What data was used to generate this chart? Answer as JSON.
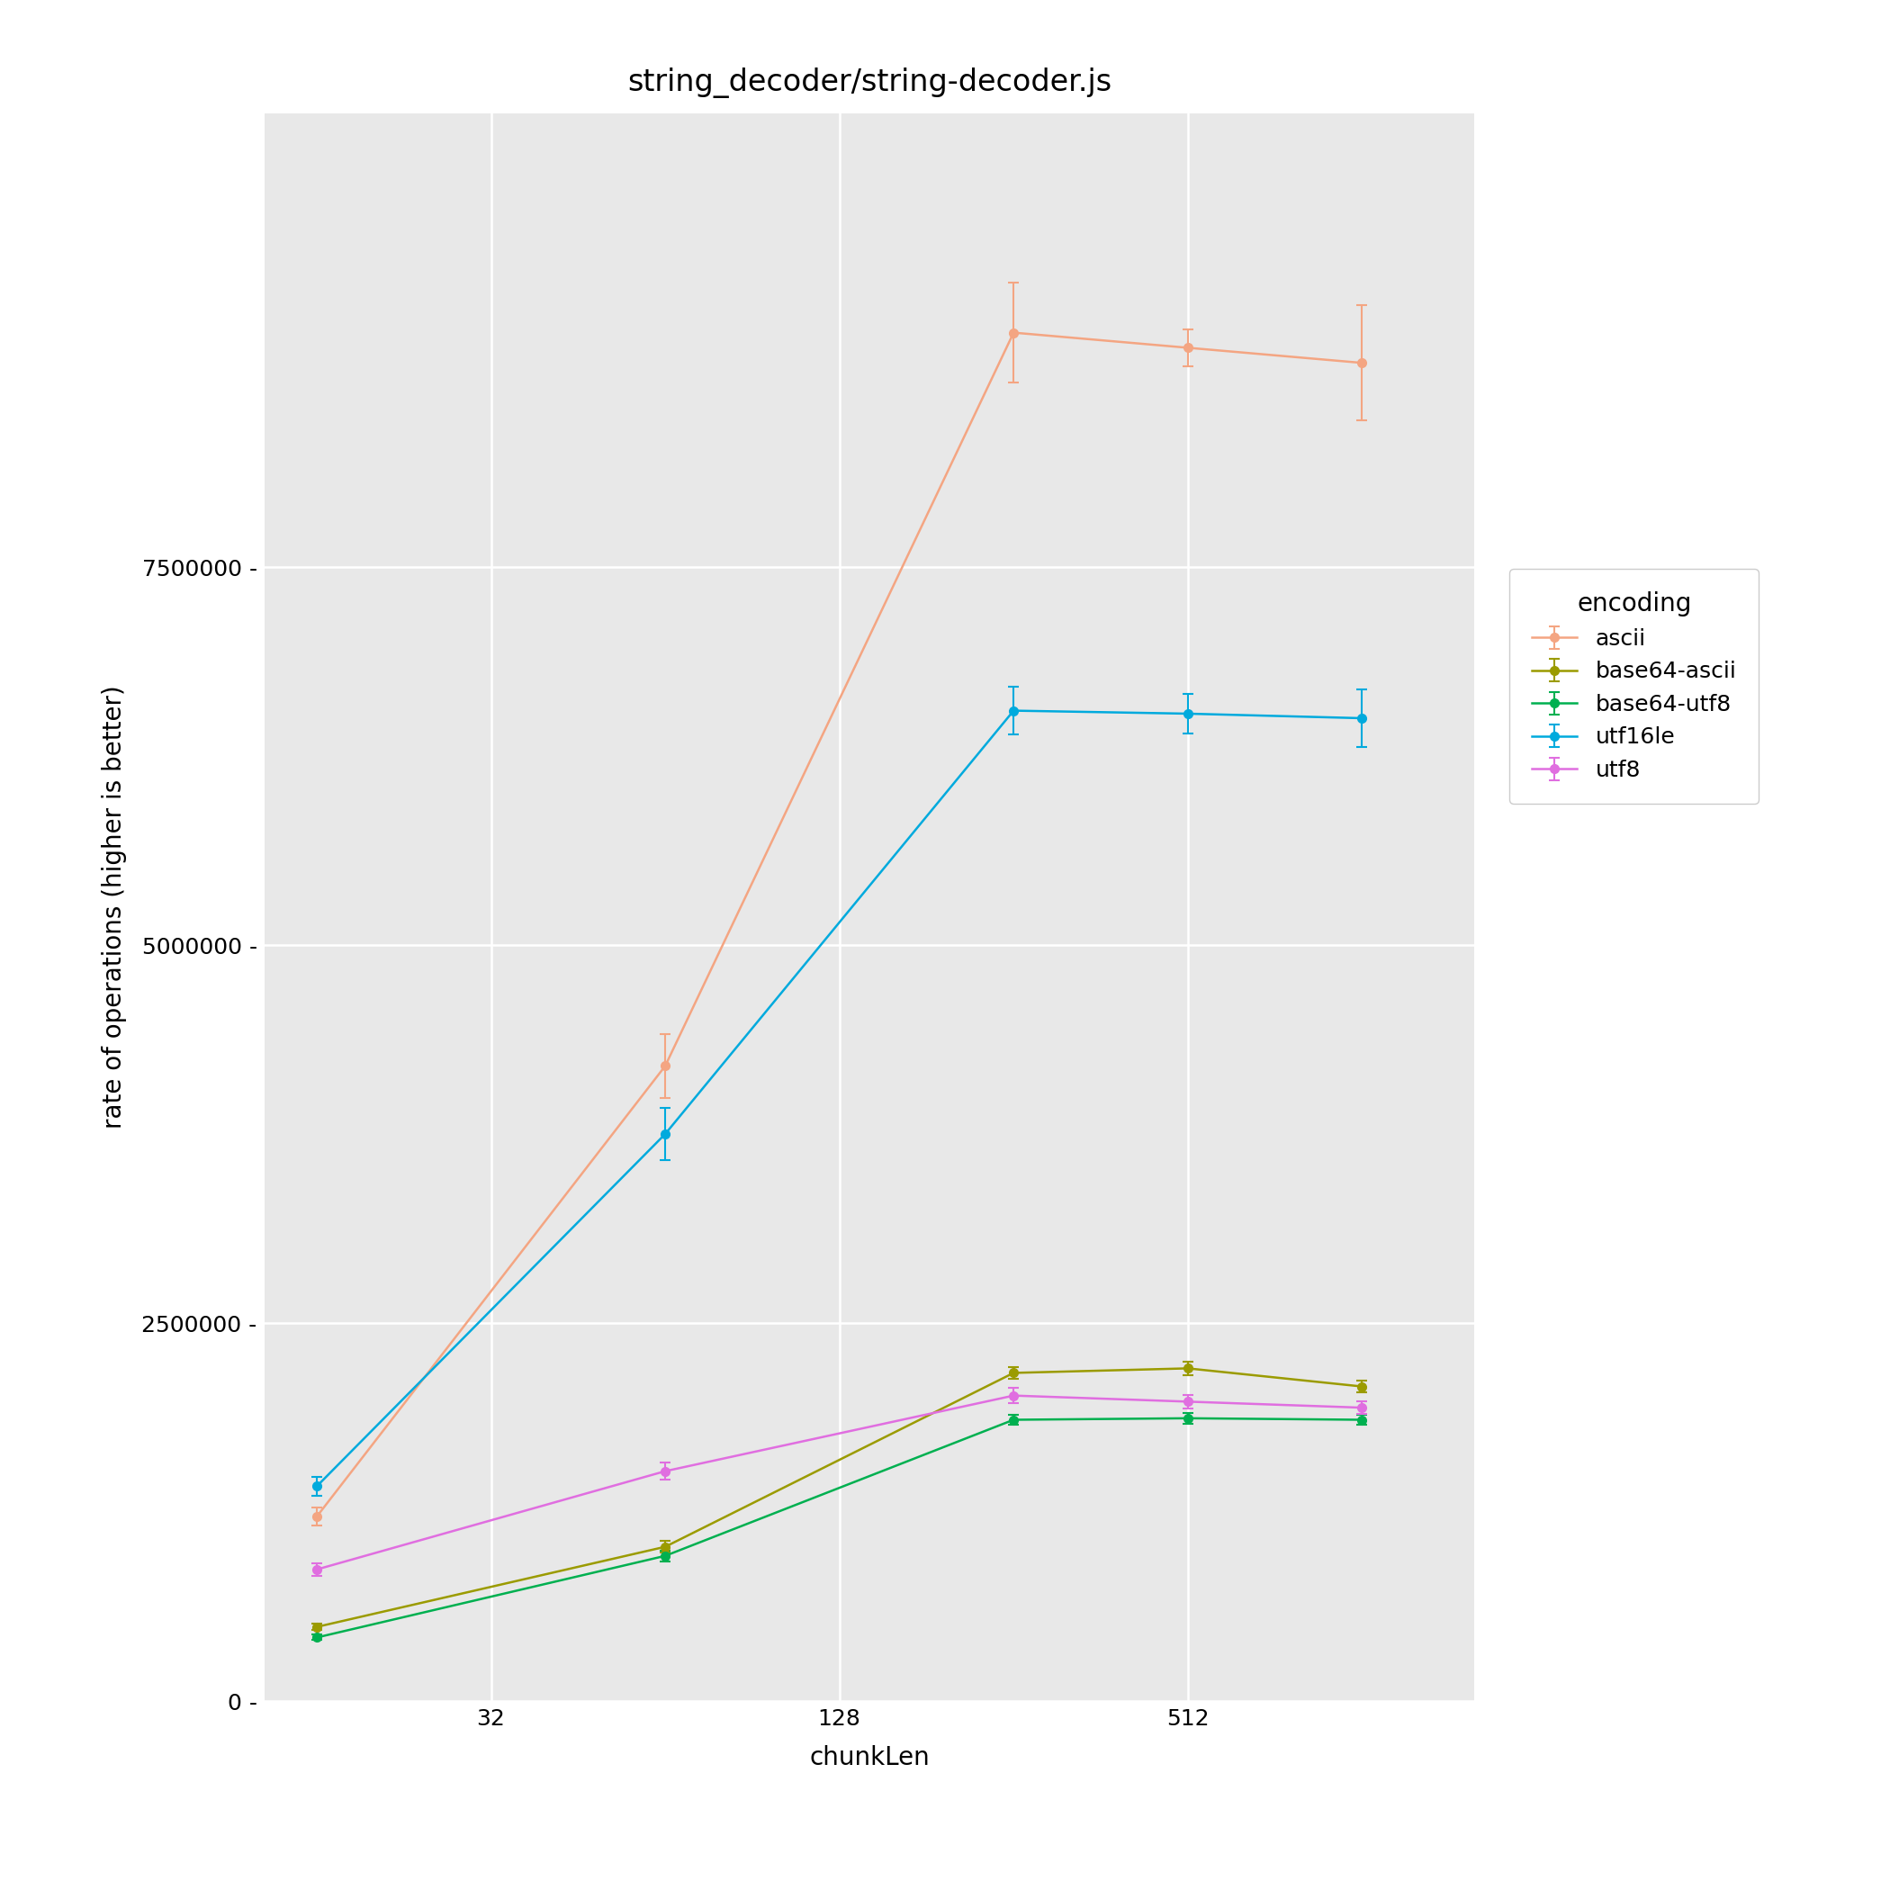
{
  "title": "string_decoder/string-decoder.js",
  "xlabel": "chunkLen",
  "ylabel": "rate of operations (higher is better)",
  "plot_bg": "#E8E8E8",
  "grid_color": "#FFFFFF",
  "x_ticks_show": [
    32,
    128,
    512
  ],
  "x_lim": [
    13,
    1600
  ],
  "series_order": [
    "ascii",
    "base64-ascii",
    "base64-utf8",
    "utf16le",
    "utf8"
  ],
  "series": {
    "ascii": {
      "color": "#F4A582",
      "x": [
        16,
        64,
        256,
        512,
        1024
      ],
      "y": [
        1220000,
        4200000,
        9050000,
        8950000,
        8850000
      ],
      "yerr": [
        60000,
        210000,
        330000,
        120000,
        380000
      ]
    },
    "base64-ascii": {
      "color": "#9B9B00",
      "x": [
        16,
        64,
        256,
        512,
        1024
      ],
      "y": [
        490000,
        1020000,
        2170000,
        2200000,
        2080000
      ],
      "yerr": [
        20000,
        40000,
        40000,
        45000,
        40000
      ]
    },
    "base64-utf8": {
      "color": "#00B050",
      "x": [
        16,
        64,
        256,
        512,
        1024
      ],
      "y": [
        420000,
        960000,
        1860000,
        1870000,
        1860000
      ],
      "yerr": [
        18000,
        35000,
        35000,
        35000,
        35000
      ]
    },
    "utf16le": {
      "color": "#00AADD",
      "x": [
        16,
        64,
        256,
        512,
        1024
      ],
      "y": [
        1420000,
        3750000,
        6550000,
        6530000,
        6500000
      ],
      "yerr": [
        60000,
        170000,
        160000,
        130000,
        190000
      ]
    },
    "utf8": {
      "color": "#E06EE0",
      "x": [
        16,
        64,
        256,
        512,
        1024
      ],
      "y": [
        870000,
        1520000,
        2020000,
        1980000,
        1940000
      ],
      "yerr": [
        40000,
        55000,
        50000,
        45000,
        40000
      ]
    }
  },
  "ylim": [
    0,
    10500000
  ],
  "yticks": [
    0,
    2500000,
    5000000,
    7500000
  ],
  "title_fontsize": 24,
  "axis_fontsize": 20,
  "tick_fontsize": 18,
  "legend_title_fontsize": 20,
  "legend_fontsize": 18
}
